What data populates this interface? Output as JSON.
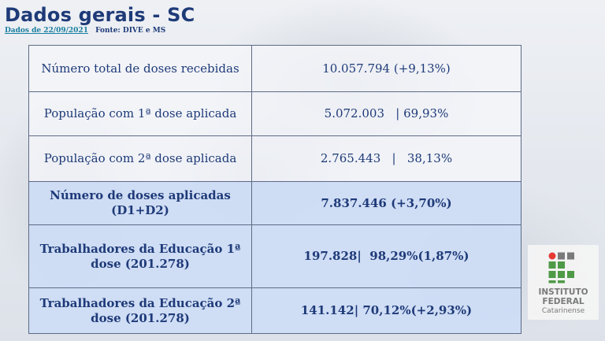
{
  "header": {
    "title": "Dados gerais - SC",
    "date_label": "Dados de 22/09/2021",
    "source_label": "Fonte: DIVE  e MS"
  },
  "table": {
    "rows": [
      {
        "label": "Número total de doses recebidas",
        "value": "10.057.794 (+9,13%)"
      },
      {
        "label": "População com 1ª dose aplicada",
        "value": "5.072.003   | 69,93%"
      },
      {
        "label": "População com 2ª dose aplicada",
        "value": "2.765.443   |   38,13%"
      },
      {
        "label": "Número de doses aplicadas (D1+D2)",
        "value": "7.837.446 (+3,70%)"
      },
      {
        "label": "Trabalhadores da Educação 1ª dose (201.278)",
        "value": "197.828|  98,29%(1,87%)"
      },
      {
        "label": "Trabalhadores da Educação 2ª dose (201.278)",
        "value": "141.142| 70,12%(+2,93%)"
      }
    ]
  },
  "logo": {
    "line1": "INSTITUTO",
    "line2": "FEDERAL",
    "line3": "Catarinense",
    "colors": {
      "red": "#e63a34",
      "green": "#4f9a46",
      "gray": "#7a7a7a"
    }
  }
}
